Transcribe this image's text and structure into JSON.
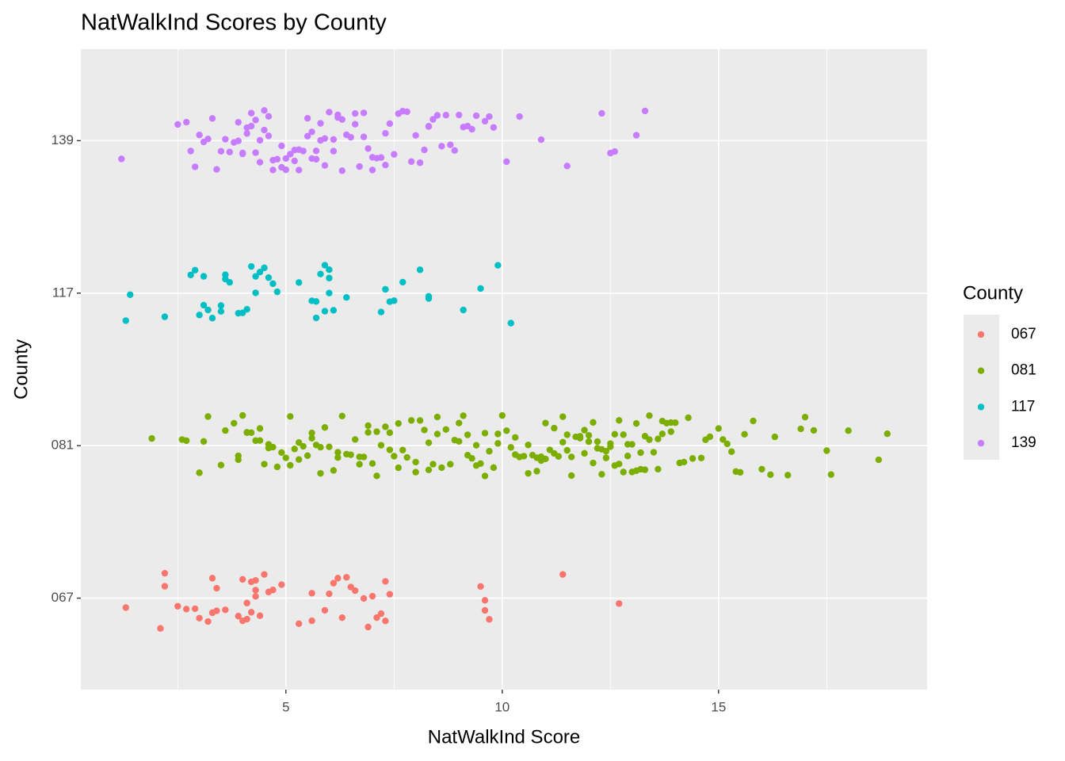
{
  "chart_data": {
    "type": "scatter",
    "title": "NatWalkInd Scores by County",
    "x_label": "NatWalkInd Score",
    "y_label": "County",
    "legend_title": "County",
    "xlim": [
      0.26,
      19.82
    ],
    "xticks": [
      5,
      10,
      15
    ],
    "x_minor_grid": [
      2.5,
      7.5,
      12.5,
      17.5
    ],
    "categories": [
      "067",
      "081",
      "117",
      "139"
    ],
    "grid": true,
    "legend": "right",
    "series": [
      {
        "name": "067",
        "color": "#F8766D",
        "values": [
          1.3,
          2.2,
          2.5,
          2.1,
          2.7,
          2.9,
          3.3,
          3.2,
          3.4,
          3.0,
          3.3,
          3.4,
          3.9,
          4.0,
          4.1,
          4.2,
          4.3,
          4.4,
          4.0,
          4.1,
          4.5,
          4.3,
          4.2,
          4.7,
          4.9,
          4.3,
          5.3,
          5.6,
          5.6,
          6.0,
          6.3,
          6.2,
          6.4,
          6.5,
          6.6,
          6.8,
          6.9,
          7.0,
          7.2,
          7.3,
          7.4,
          7.3,
          7.1,
          9.5,
          9.6,
          9.7,
          9.6,
          11.4,
          12.7,
          2.2,
          3.6,
          4.6,
          5.9,
          6.1
        ]
      },
      {
        "name": "081",
        "color": "#7CAE00",
        "values": [
          1.9,
          2.6,
          2.7,
          3.0,
          3.1,
          3.2,
          3.6,
          3.8,
          3.9,
          4.0,
          4.1,
          4.1,
          4.3,
          4.4,
          4.5,
          4.6,
          4.6,
          4.8,
          4.9,
          5.0,
          5.1,
          5.2,
          5.3,
          5.4,
          5.5,
          5.6,
          5.7,
          5.8,
          5.9,
          6.0,
          6.1,
          6.2,
          6.3,
          6.4,
          6.5,
          6.6,
          6.7,
          6.8,
          6.9,
          7.0,
          7.1,
          7.2,
          7.3,
          7.4,
          7.5,
          7.6,
          7.7,
          7.8,
          7.9,
          8.0,
          8.1,
          8.2,
          8.3,
          8.4,
          8.5,
          8.6,
          8.7,
          8.8,
          8.9,
          9.0,
          9.1,
          9.2,
          9.3,
          9.4,
          9.5,
          9.6,
          9.7,
          9.8,
          9.9,
          10.0,
          10.1,
          10.2,
          10.3,
          10.4,
          10.5,
          10.6,
          10.7,
          10.8,
          10.9,
          11.0,
          11.1,
          11.2,
          11.3,
          11.4,
          11.5,
          11.6,
          11.7,
          11.8,
          11.9,
          12.0,
          12.1,
          12.2,
          12.3,
          12.4,
          12.5,
          12.6,
          12.7,
          12.8,
          12.9,
          13.0,
          13.1,
          13.2,
          13.3,
          13.4,
          13.5,
          13.6,
          13.7,
          13.8,
          13.9,
          14.0,
          14.2,
          14.4,
          14.6,
          14.8,
          15.0,
          15.2,
          15.4,
          15.6,
          15.8,
          16.0,
          16.3,
          16.6,
          16.9,
          17.2,
          17.5,
          17.6,
          18.0,
          18.7,
          18.9,
          3.5,
          4.2,
          4.7,
          5.3,
          5.8,
          6.2,
          6.7,
          7.1,
          7.6,
          8.0,
          8.5,
          9.0,
          9.4,
          9.9,
          10.3,
          10.8,
          11.2,
          11.5,
          11.8,
          12.0,
          12.2,
          12.4,
          12.6,
          12.8,
          13.0,
          13.2,
          13.4,
          13.6,
          13.9,
          14.3,
          14.7,
          15.1,
          15.5,
          16.2,
          17.0,
          4.4,
          5.6,
          6.9,
          8.3,
          9.6,
          10.6,
          11.0,
          11.6,
          12.1,
          12.5,
          12.9,
          13.3,
          13.7,
          14.1,
          15.3,
          11.9,
          12.3,
          12.7,
          13.1,
          10.9,
          11.4,
          9.2,
          7.4,
          5.1,
          3.9
        ]
      },
      {
        "name": "117",
        "color": "#00BFC4",
        "values": [
          1.3,
          1.4,
          2.2,
          2.8,
          2.9,
          3.1,
          3.3,
          3.5,
          3.6,
          3.7,
          3.0,
          3.2,
          3.1,
          3.5,
          3.6,
          3.9,
          4.0,
          4.1,
          4.3,
          4.4,
          4.5,
          4.6,
          4.7,
          4.8,
          4.3,
          4.2,
          5.3,
          5.6,
          5.7,
          5.8,
          5.9,
          6.0,
          6.1,
          6.0,
          5.7,
          6.4,
          6.0,
          7.2,
          7.3,
          7.4,
          7.5,
          7.7,
          8.1,
          8.3,
          8.3,
          9.1,
          9.5,
          9.9,
          10.2,
          5.9
        ]
      },
      {
        "name": "139",
        "color": "#C77CFF",
        "values": [
          1.2,
          2.5,
          2.7,
          2.8,
          2.9,
          3.0,
          3.2,
          3.4,
          3.5,
          3.6,
          3.7,
          3.8,
          3.9,
          4.0,
          4.0,
          4.1,
          4.2,
          4.2,
          4.3,
          4.4,
          4.4,
          4.5,
          4.5,
          4.6,
          4.7,
          4.8,
          4.9,
          5.0,
          5.0,
          5.1,
          5.2,
          5.3,
          5.3,
          5.4,
          5.5,
          5.6,
          5.6,
          5.7,
          5.8,
          5.9,
          5.9,
          6.0,
          6.1,
          6.2,
          6.3,
          6.3,
          6.4,
          6.5,
          6.6,
          6.7,
          6.8,
          6.9,
          7.0,
          7.1,
          7.2,
          7.3,
          7.4,
          7.5,
          7.6,
          7.8,
          7.9,
          8.0,
          8.1,
          8.2,
          8.3,
          8.4,
          8.5,
          8.6,
          8.8,
          8.9,
          9.0,
          9.1,
          9.2,
          9.4,
          9.6,
          9.7,
          9.8,
          10.1,
          10.4,
          10.9,
          11.5,
          12.3,
          12.5,
          12.6,
          13.1,
          13.3,
          3.3,
          3.9,
          4.3,
          4.7,
          5.2,
          5.8,
          6.1,
          6.6,
          7.0,
          7.7,
          8.3,
          9.3,
          4.1,
          4.6,
          5.5,
          6.2,
          6.8,
          7.3,
          8.7,
          3.1,
          4.9,
          5.7
        ]
      }
    ]
  }
}
